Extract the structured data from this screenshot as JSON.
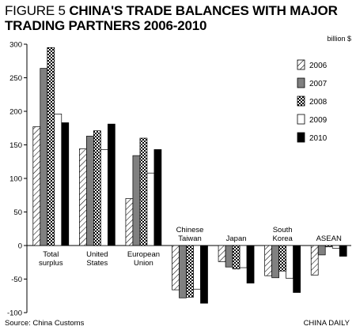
{
  "title_prefix": "FIGURE 5 ",
  "title_main": "CHINA'S TRADE BALANCES WITH MAJOR TRADING PARTNERS 2006-2010",
  "unit_label": "billion $",
  "source": "Source: China Customs",
  "brand": "CHINA DAILY",
  "chart_data": {
    "type": "bar",
    "title": "CHINA'S TRADE BALANCES WITH MAJOR TRADING PARTNERS 2006-2010",
    "ylabel": "billion $",
    "ylim": [
      -100,
      300
    ],
    "yticks": [
      -100,
      -50,
      0,
      50,
      100,
      150,
      200,
      250,
      300
    ],
    "categories": [
      [
        "Total",
        "surplus"
      ],
      [
        "United",
        "States"
      ],
      [
        "European",
        "Union"
      ],
      [
        "Chinese",
        "Taiwan"
      ],
      [
        "Japan"
      ],
      [
        "South",
        "Korea"
      ],
      [
        "ASEAN"
      ]
    ],
    "category_label_position": [
      "below",
      "below",
      "below",
      "above",
      "above",
      "above",
      "above"
    ],
    "series": [
      {
        "name": "2006",
        "pattern": "hatch",
        "values": [
          177,
          144,
          70,
          -66,
          -24,
          -45,
          -44
        ]
      },
      {
        "name": "2007",
        "pattern": "gray",
        "values": [
          264,
          163,
          134,
          -78,
          -32,
          -48,
          -14
        ]
      },
      {
        "name": "2008",
        "pattern": "checker",
        "values": [
          295,
          171,
          160,
          -77,
          -35,
          -38,
          -2
        ]
      },
      {
        "name": "2009",
        "pattern": "white",
        "values": [
          196,
          143,
          108,
          -65,
          -33,
          -49,
          -4
        ]
      },
      {
        "name": "2010",
        "pattern": "black",
        "values": [
          183,
          181,
          143,
          -86,
          -56,
          -70,
          -16
        ]
      }
    ],
    "legend": "top-right",
    "grid": false
  }
}
